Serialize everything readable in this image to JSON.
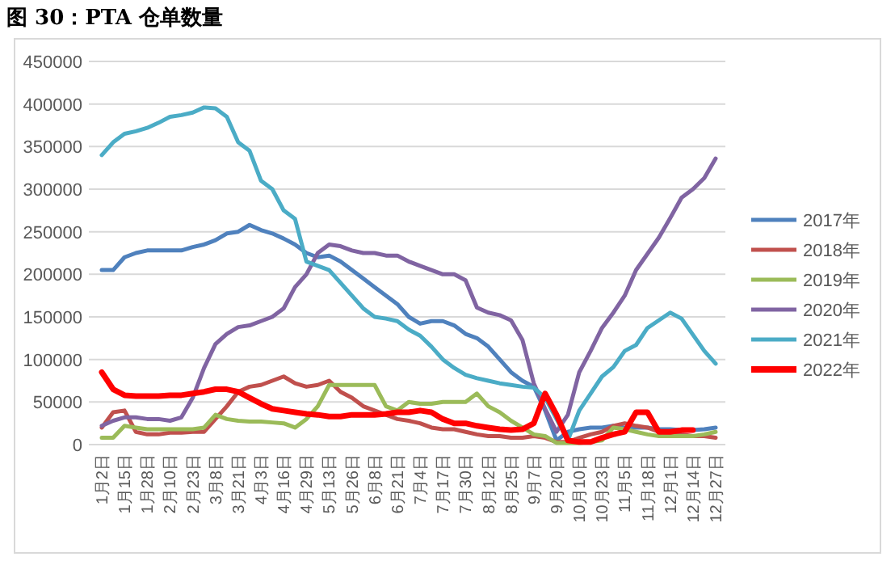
{
  "chart_data": {
    "type": "line",
    "title": "图 30：PTA 仓单数量",
    "categories": [
      "1月2日",
      null,
      "1月15日",
      null,
      "1月28日",
      null,
      "2月10日",
      null,
      "2月23日",
      null,
      "3月8日",
      null,
      "3月21日",
      null,
      "4月3日",
      null,
      "4月16日",
      null,
      "4月29日",
      null,
      "5月13日",
      null,
      "5月26日",
      null,
      "6月8日",
      null,
      "6月21日",
      null,
      "7月4日",
      null,
      "7月17日",
      null,
      "7月30日",
      null,
      "8月12日",
      null,
      "8月25日",
      null,
      "9月7日",
      null,
      "9月20日",
      null,
      "10月10日",
      null,
      "10月23日",
      null,
      "11月5日",
      null,
      "11月18日",
      null,
      "12月1日",
      null,
      "12月14日",
      null,
      "12月27日"
    ],
    "series": [
      {
        "name": "2017年",
        "color": "#4f81bd",
        "values": [
          205000,
          205000,
          220000,
          225000,
          228000,
          228000,
          228000,
          228000,
          232000,
          235000,
          240000,
          248000,
          250000,
          258000,
          252000,
          248000,
          242000,
          235000,
          225000,
          220000,
          222000,
          215000,
          205000,
          195000,
          185000,
          175000,
          165000,
          150000,
          142000,
          145000,
          145000,
          140000,
          130000,
          125000,
          115000,
          100000,
          85000,
          75000,
          68000,
          40000,
          5000,
          15000,
          18000,
          20000,
          20000,
          22000,
          20000,
          20000,
          20000,
          18000,
          18000,
          17000,
          17000,
          18000,
          20000
        ]
      },
      {
        "name": "2018年",
        "color": "#c0504d",
        "values": [
          20000,
          38000,
          40000,
          15000,
          12000,
          12000,
          14000,
          14000,
          15000,
          15000,
          30000,
          45000,
          62000,
          68000,
          70000,
          75000,
          80000,
          72000,
          68000,
          70000,
          75000,
          62000,
          55000,
          45000,
          40000,
          35000,
          30000,
          28000,
          25000,
          20000,
          18000,
          18000,
          15000,
          12000,
          10000,
          10000,
          8000,
          8000,
          10000,
          8000,
          3000,
          3000,
          8000,
          12000,
          15000,
          22000,
          25000,
          22000,
          20000,
          15000,
          15000,
          12000,
          10000,
          10000,
          8000
        ]
      },
      {
        "name": "2019年",
        "color": "#9bbb59",
        "values": [
          8000,
          8000,
          22000,
          20000,
          18000,
          18000,
          18000,
          18000,
          18000,
          20000,
          35000,
          30000,
          28000,
          27000,
          27000,
          26000,
          25000,
          20000,
          30000,
          45000,
          70000,
          70000,
          70000,
          70000,
          70000,
          45000,
          40000,
          50000,
          48000,
          48000,
          50000,
          50000,
          50000,
          60000,
          45000,
          38000,
          28000,
          20000,
          12000,
          10000,
          2000,
          2000,
          2000,
          3000,
          5000,
          20000,
          18000,
          15000,
          12000,
          10000,
          10000,
          10000,
          10000,
          12000,
          15000
        ]
      },
      {
        "name": "2020年",
        "color": "#8064a2",
        "values": [
          22000,
          28000,
          32000,
          32000,
          30000,
          30000,
          28000,
          32000,
          55000,
          90000,
          118000,
          130000,
          138000,
          140000,
          145000,
          150000,
          160000,
          185000,
          200000,
          225000,
          235000,
          233000,
          228000,
          225000,
          225000,
          222000,
          222000,
          215000,
          210000,
          205000,
          200000,
          200000,
          193000,
          161000,
          155000,
          152000,
          146000,
          123000,
          72000,
          42000,
          15000,
          35000,
          85000,
          110000,
          137000,
          155000,
          175000,
          205000,
          224000,
          243000,
          266000,
          290000,
          300000,
          313000,
          336000
        ]
      },
      {
        "name": "2021年",
        "color": "#4bacc6",
        "values": [
          340000,
          355000,
          365000,
          368000,
          372000,
          378000,
          385000,
          387000,
          390000,
          396000,
          395000,
          385000,
          355000,
          345000,
          310000,
          300000,
          275000,
          265000,
          215000,
          210000,
          205000,
          190000,
          175000,
          160000,
          150000,
          148000,
          145000,
          135000,
          128000,
          115000,
          100000,
          90000,
          82000,
          78000,
          75000,
          72000,
          70000,
          68000,
          67000,
          55000,
          30000,
          5000,
          40000,
          60000,
          80000,
          91000,
          110000,
          117000,
          137000,
          146000,
          155000,
          148000,
          129000,
          110000,
          95000
        ]
      },
      {
        "name": "2022年",
        "color": "#ff0000",
        "values": [
          85000,
          65000,
          58000,
          57000,
          57000,
          57000,
          58000,
          58000,
          60000,
          62000,
          65000,
          65000,
          62000,
          55000,
          48000,
          42000,
          40000,
          38000,
          36000,
          35000,
          33000,
          33000,
          35000,
          35000,
          35000,
          36000,
          38000,
          38000,
          40000,
          38000,
          30000,
          25000,
          25000,
          22000,
          20000,
          18000,
          17000,
          18000,
          25000,
          60000,
          35000,
          5000,
          3000,
          3000,
          8000,
          12000,
          15000,
          38000,
          38000,
          15000,
          15000,
          17000,
          17000,
          null,
          null
        ]
      }
    ],
    "ylim": [
      0,
      450000
    ],
    "yticks": [
      0,
      50000,
      100000,
      150000,
      200000,
      250000,
      300000,
      350000,
      400000,
      450000
    ],
    "grid": "y",
    "legend": "right"
  }
}
